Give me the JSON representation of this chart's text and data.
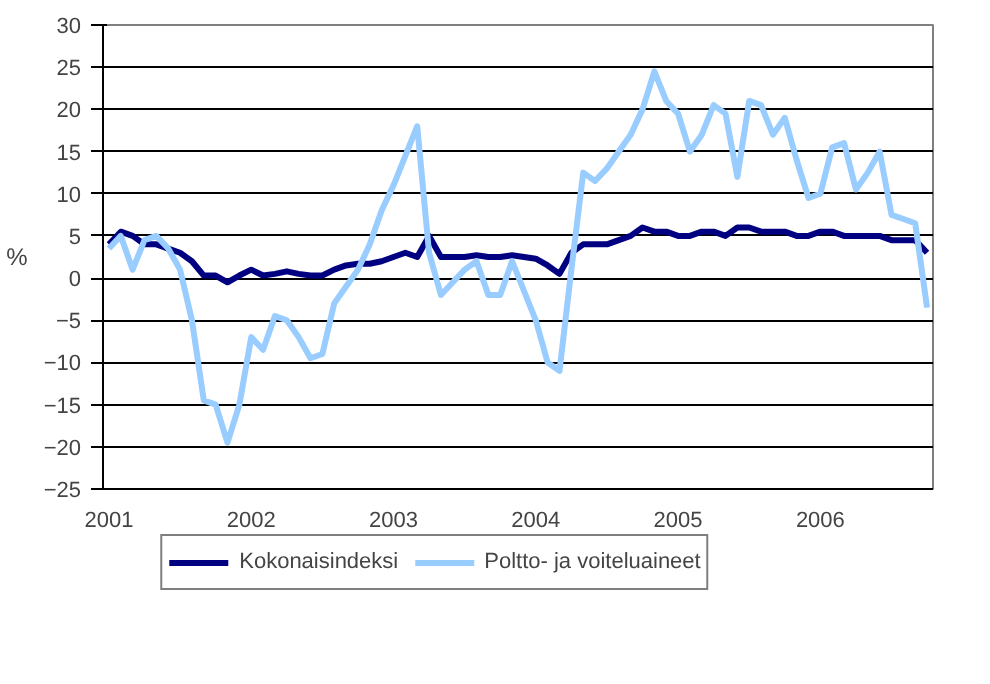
{
  "chart_data": {
    "type": "line",
    "ylabel": "%",
    "categories": [
      "2001",
      null,
      null,
      null,
      null,
      null,
      null,
      null,
      null,
      null,
      null,
      null,
      "2002",
      null,
      null,
      null,
      null,
      null,
      null,
      null,
      null,
      null,
      null,
      null,
      "2003",
      null,
      null,
      null,
      null,
      null,
      null,
      null,
      null,
      null,
      null,
      null,
      "2004",
      null,
      null,
      null,
      null,
      null,
      null,
      null,
      null,
      null,
      null,
      null,
      "2005",
      null,
      null,
      null,
      null,
      null,
      null,
      null,
      null,
      null,
      null,
      null,
      "2006",
      null,
      null,
      null,
      null,
      null,
      null,
      null,
      null,
      null
    ],
    "series": [
      {
        "name": "Kokonaisindeksi",
        "color": "#000080",
        "values": [
          4,
          5.5,
          5,
          4,
          4,
          3.5,
          3,
          2,
          0.3,
          0.3,
          -0.5,
          0.3,
          1,
          0.3,
          0.5,
          0.8,
          0.5,
          0.3,
          0.3,
          1,
          1.5,
          1.7,
          1.7,
          2,
          2.5,
          3,
          2.5,
          5,
          2.5,
          2.5,
          2.5,
          2.7,
          2.5,
          2.5,
          2.7,
          2.5,
          2.3,
          1.5,
          0.5,
          3,
          4,
          4,
          4,
          4.5,
          5,
          6,
          5.5,
          5.5,
          5,
          5,
          5.5,
          5.5,
          5,
          6,
          6,
          5.5,
          5.5,
          5.5,
          5,
          5,
          5.5,
          5.5,
          5,
          5,
          5,
          5,
          4.5,
          4.5,
          4.5,
          3
        ]
      },
      {
        "name": "Poltto- ja voiteluaineet",
        "color": "#99ccff",
        "values": [
          3.5,
          5,
          1,
          4.5,
          5,
          3.5,
          1,
          -5,
          -14.5,
          -15,
          -19.5,
          -15,
          -7,
          -8.5,
          -4.5,
          -5,
          -7,
          -9.5,
          -9,
          -3,
          -1,
          1,
          4,
          8,
          11,
          14.5,
          18,
          3,
          -2,
          -0.5,
          1,
          2,
          -2,
          -2,
          2,
          -1.5,
          -5,
          -10,
          -11,
          1,
          12.5,
          11.5,
          13,
          15,
          17,
          20,
          24.5,
          21,
          19.5,
          15,
          17,
          20.5,
          19.5,
          12,
          21,
          20.5,
          17,
          19,
          14,
          9.5,
          10,
          15.5,
          16,
          10.5,
          12.5,
          15,
          7.5,
          7,
          6.5,
          -3.5
        ]
      }
    ],
    "ylim": [
      -25,
      30
    ],
    "yticks": [
      -25,
      -20,
      -15,
      -10,
      -5,
      0,
      5,
      10,
      15,
      20,
      25,
      30
    ],
    "grid": "y",
    "legend": "bottom",
    "line_style": "solid",
    "marker": "none"
  }
}
